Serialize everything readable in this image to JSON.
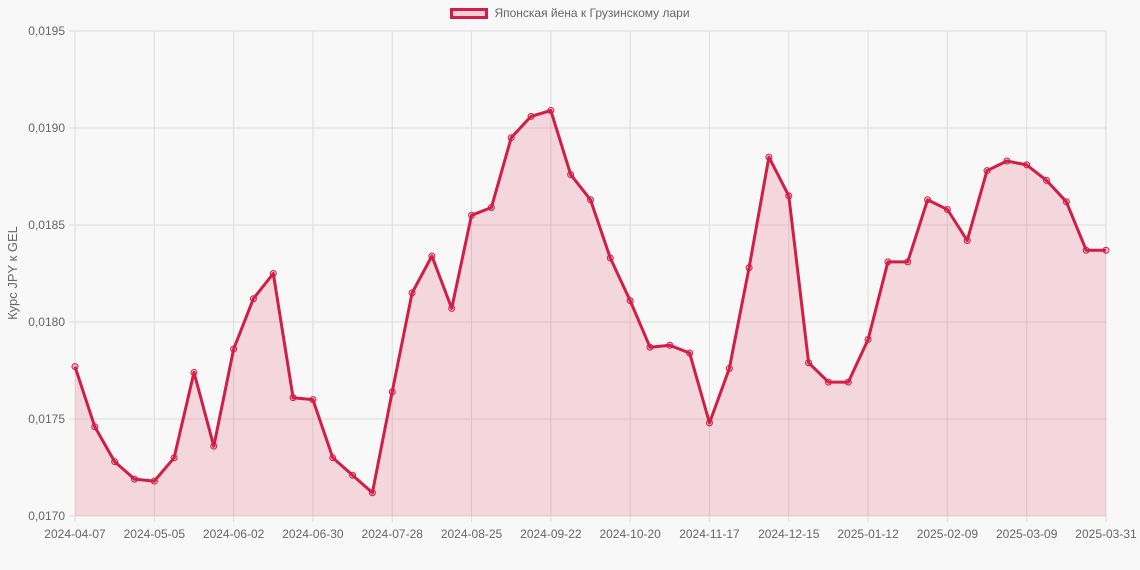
{
  "legend": {
    "label": "Японская йена к Грузинскому лари",
    "swatch_color": "#d21e46"
  },
  "colors": {
    "line": "#d21e46",
    "fill": "rgba(220,30,70,0.15)",
    "grid": "#dddddd",
    "background": "#f8f8f8"
  },
  "chart_data": {
    "type": "area",
    "title": "",
    "xlabel": "",
    "ylabel": "Курс JPY к GEL",
    "ylim": [
      0.017,
      0.0195
    ],
    "yticks": [
      "0,0170",
      "0,0175",
      "0,0180",
      "0,0185",
      "0,0190",
      "0,0195"
    ],
    "xticks": [
      "2024-04-07",
      "2024-05-05",
      "2024-06-02",
      "2024-06-30",
      "2024-07-28",
      "2024-08-25",
      "2024-09-22",
      "2024-10-20",
      "2024-11-17",
      "2024-12-15",
      "2025-01-12",
      "2025-02-09",
      "2025-03-09",
      "2025-03-31"
    ],
    "grid": true,
    "legend_position": "top",
    "series": [
      {
        "name": "Японская йена к Грузинскому лари",
        "x": [
          "2024-04-07",
          "2024-04-14",
          "2024-04-21",
          "2024-04-28",
          "2024-05-05",
          "2024-05-12",
          "2024-05-19",
          "2024-05-26",
          "2024-06-02",
          "2024-06-09",
          "2024-06-16",
          "2024-06-23",
          "2024-06-30",
          "2024-07-07",
          "2024-07-14",
          "2024-07-21",
          "2024-07-28",
          "2024-08-04",
          "2024-08-11",
          "2024-08-18",
          "2024-08-25",
          "2024-09-01",
          "2024-09-08",
          "2024-09-15",
          "2024-09-22",
          "2024-09-29",
          "2024-10-06",
          "2024-10-13",
          "2024-10-20",
          "2024-10-27",
          "2024-11-03",
          "2024-11-10",
          "2024-11-17",
          "2024-11-24",
          "2024-12-01",
          "2024-12-08",
          "2024-12-15",
          "2024-12-22",
          "2024-12-29",
          "2025-01-05",
          "2025-01-12",
          "2025-01-19",
          "2025-01-26",
          "2025-02-02",
          "2025-02-09",
          "2025-02-16",
          "2025-02-23",
          "2025-03-02",
          "2025-03-09",
          "2025-03-16",
          "2025-03-23",
          "2025-03-30",
          "2025-03-31"
        ],
        "values": [
          0.01777,
          0.01746,
          0.01728,
          0.01719,
          0.01718,
          0.0173,
          0.01774,
          0.01736,
          0.01786,
          0.01812,
          0.01825,
          0.01761,
          0.0176,
          0.0173,
          0.01721,
          0.01712,
          0.01764,
          0.01815,
          0.01834,
          0.01807,
          0.01855,
          0.01859,
          0.01895,
          0.01906,
          0.01909,
          0.01876,
          0.01863,
          0.01833,
          0.01811,
          0.01787,
          0.01788,
          0.01784,
          0.01748,
          0.01776,
          0.01828,
          0.01885,
          0.01865,
          0.01779,
          0.01769,
          0.01769,
          0.01791,
          0.01831,
          0.01831,
          0.01863,
          0.01858,
          0.01842,
          0.01878,
          0.01883,
          0.01881,
          0.01873,
          0.01862,
          0.01837,
          0.01837
        ]
      }
    ]
  }
}
